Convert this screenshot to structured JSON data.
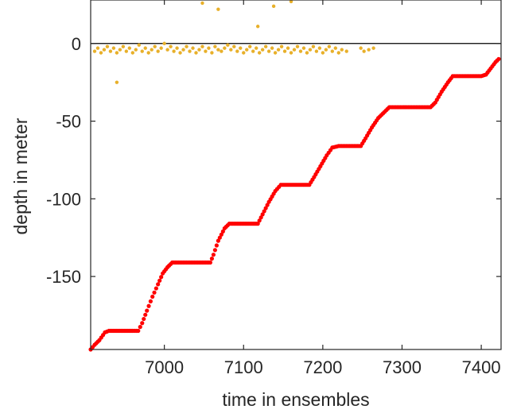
{
  "chart_data": {
    "type": "scatter",
    "title": "",
    "xlabel": "time in ensembles",
    "ylabel": "depth in meter",
    "xlim": [
      6907,
      7425
    ],
    "ylim": [
      -197,
      28
    ],
    "xticks": [
      7000,
      7100,
      7200,
      7300,
      7400
    ],
    "yticks": [
      0,
      -50,
      -100,
      -150
    ],
    "grid": false,
    "legend": "none",
    "reference_line": {
      "y": 0,
      "color": "#000000"
    },
    "series": [
      {
        "color": "#e8b02a",
        "points": [
          [
            6912,
            -5
          ],
          [
            6916,
            -3
          ],
          [
            6920,
            -6
          ],
          [
            6924,
            -4
          ],
          [
            6928,
            -2
          ],
          [
            6932,
            -5
          ],
          [
            6936,
            -3
          ],
          [
            6940,
            -6
          ],
          [
            6944,
            -4
          ],
          [
            6948,
            -2
          ],
          [
            6952,
            -5
          ],
          [
            6956,
            -3
          ],
          [
            6960,
            -6
          ],
          [
            6964,
            -4
          ],
          [
            6968,
            -1
          ],
          [
            6972,
            -5
          ],
          [
            6976,
            -3
          ],
          [
            6980,
            -6
          ],
          [
            6984,
            -4
          ],
          [
            6988,
            -2
          ],
          [
            6992,
            -5
          ],
          [
            6996,
            -3
          ],
          [
            7000,
            0
          ],
          [
            7004,
            -4
          ],
          [
            7008,
            -2
          ],
          [
            7012,
            -5
          ],
          [
            7016,
            -3
          ],
          [
            7020,
            -6
          ],
          [
            7024,
            -4
          ],
          [
            7028,
            -2
          ],
          [
            7032,
            -5
          ],
          [
            7036,
            -3
          ],
          [
            7040,
            -6
          ],
          [
            7044,
            -4
          ],
          [
            7048,
            -2
          ],
          [
            7052,
            -5
          ],
          [
            7056,
            -3
          ],
          [
            7060,
            -6
          ],
          [
            7064,
            -2
          ],
          [
            7068,
            -4
          ],
          [
            7072,
            -5
          ],
          [
            7076,
            -3
          ],
          [
            7080,
            -1
          ],
          [
            7084,
            -4
          ],
          [
            7088,
            -2
          ],
          [
            7092,
            -5
          ],
          [
            7096,
            -3
          ],
          [
            7100,
            -6
          ],
          [
            7104,
            -4
          ],
          [
            7108,
            -2
          ],
          [
            7112,
            -5
          ],
          [
            7116,
            -3
          ],
          [
            7120,
            -6
          ],
          [
            7124,
            -4
          ],
          [
            7128,
            -2
          ],
          [
            7132,
            -5
          ],
          [
            7136,
            -3
          ],
          [
            7140,
            -6
          ],
          [
            7144,
            -4
          ],
          [
            7148,
            -2
          ],
          [
            7152,
            -5
          ],
          [
            7156,
            -3
          ],
          [
            7160,
            -6
          ],
          [
            7164,
            -4
          ],
          [
            7168,
            -2
          ],
          [
            7172,
            -5
          ],
          [
            7176,
            -3
          ],
          [
            7180,
            -6
          ],
          [
            7184,
            -4
          ],
          [
            7188,
            -2
          ],
          [
            7192,
            -5
          ],
          [
            7196,
            -3
          ],
          [
            7200,
            -6
          ],
          [
            7204,
            -4
          ],
          [
            7208,
            -2
          ],
          [
            7212,
            -5
          ],
          [
            7216,
            -3
          ],
          [
            7220,
            -6
          ],
          [
            7224,
            -4
          ],
          [
            7230,
            -5
          ],
          [
            7248,
            -3
          ],
          [
            7252,
            -5
          ],
          [
            7258,
            -4
          ],
          [
            7264,
            -3
          ],
          [
            6940,
            -25
          ],
          [
            7048,
            26
          ],
          [
            7068,
            22
          ],
          [
            7090,
            29
          ],
          [
            7118,
            11
          ],
          [
            7138,
            24
          ],
          [
            7160,
            27
          ]
        ]
      },
      {
        "color": "#ff0000",
        "points": [
          [
            6907,
            -197
          ],
          [
            6912,
            -194
          ],
          [
            6918,
            -191
          ],
          [
            6925,
            -186
          ],
          [
            6930,
            -185
          ],
          [
            6940,
            -185
          ],
          [
            6950,
            -185
          ],
          [
            6960,
            -185
          ],
          [
            6967,
            -185
          ],
          [
            6972,
            -180
          ],
          [
            6978,
            -172
          ],
          [
            6985,
            -163
          ],
          [
            6992,
            -155
          ],
          [
            6998,
            -148
          ],
          [
            7004,
            -144
          ],
          [
            7010,
            -141
          ],
          [
            7020,
            -141
          ],
          [
            7030,
            -141
          ],
          [
            7040,
            -141
          ],
          [
            7050,
            -141
          ],
          [
            7058,
            -141
          ],
          [
            7062,
            -136
          ],
          [
            7068,
            -127
          ],
          [
            7076,
            -119
          ],
          [
            7082,
            -116
          ],
          [
            7090,
            -116
          ],
          [
            7100,
            -116
          ],
          [
            7110,
            -116
          ],
          [
            7118,
            -116
          ],
          [
            7124,
            -110
          ],
          [
            7132,
            -102
          ],
          [
            7140,
            -95
          ],
          [
            7147,
            -91
          ],
          [
            7155,
            -91
          ],
          [
            7165,
            -91
          ],
          [
            7175,
            -91
          ],
          [
            7183,
            -91
          ],
          [
            7189,
            -86
          ],
          [
            7197,
            -79
          ],
          [
            7205,
            -72
          ],
          [
            7212,
            -67
          ],
          [
            7220,
            -66
          ],
          [
            7230,
            -66
          ],
          [
            7240,
            -66
          ],
          [
            7248,
            -66
          ],
          [
            7254,
            -61
          ],
          [
            7262,
            -54
          ],
          [
            7270,
            -48
          ],
          [
            7278,
            -44
          ],
          [
            7284,
            -41
          ],
          [
            7292,
            -41
          ],
          [
            7302,
            -41
          ],
          [
            7312,
            -41
          ],
          [
            7320,
            -41
          ],
          [
            7328,
            -41
          ],
          [
            7336,
            -41
          ],
          [
            7342,
            -38
          ],
          [
            7350,
            -31
          ],
          [
            7358,
            -25
          ],
          [
            7364,
            -21
          ],
          [
            7372,
            -21
          ],
          [
            7382,
            -21
          ],
          [
            7392,
            -21
          ],
          [
            7400,
            -21
          ],
          [
            7406,
            -20
          ],
          [
            7412,
            -16
          ],
          [
            7418,
            -12
          ],
          [
            7422,
            -10
          ]
        ]
      }
    ]
  }
}
